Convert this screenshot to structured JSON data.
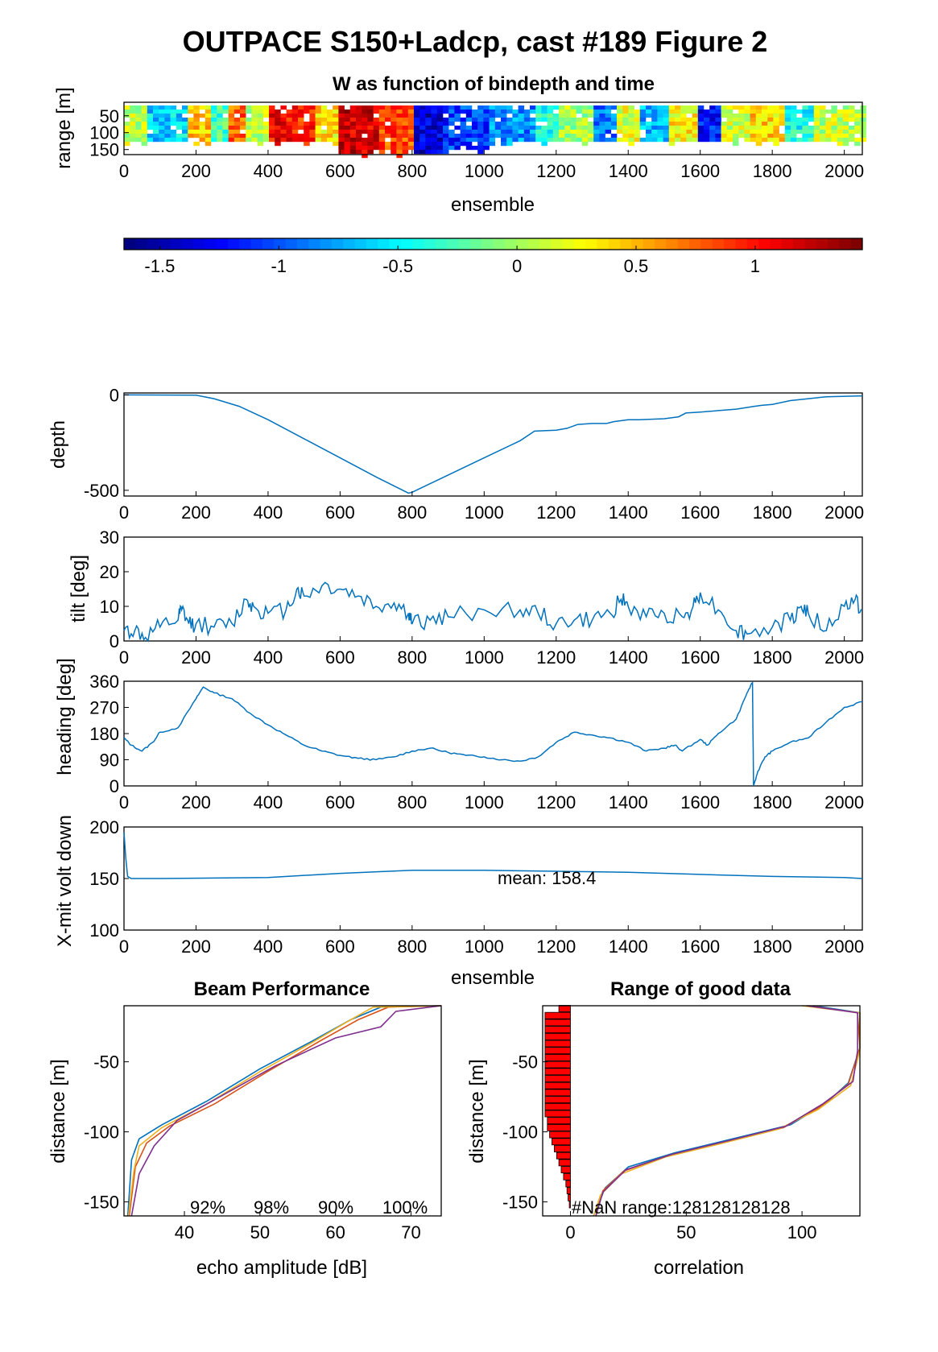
{
  "figure": {
    "title": "OUTPACE S150+Ladcp, cast #189 Figure 2"
  },
  "chart_data": [
    {
      "id": "w_image",
      "type": "heatmap",
      "title": "W as function of bindepth and time",
      "xlabel": "ensemble",
      "ylabel": "range [m]",
      "xlim": [
        0,
        2050
      ],
      "ylim": [
        165,
        10
      ],
      "xticks": [
        "0",
        "200",
        "400",
        "600",
        "800",
        "1000",
        "1200",
        "1400",
        "1600",
        "1800",
        "2000"
      ],
      "yticks": [
        "50",
        "100",
        "150"
      ],
      "w_segments": [
        {
          "x": [
            0,
            60
          ],
          "w": 0.1
        },
        {
          "x": [
            60,
            170
          ],
          "w": -0.6
        },
        {
          "x": [
            170,
            230
          ],
          "w": 0.45
        },
        {
          "x": [
            230,
            280
          ],
          "w": -0.3
        },
        {
          "x": [
            280,
            330
          ],
          "w": 0.8
        },
        {
          "x": [
            330,
            390
          ],
          "w": 0.05
        },
        {
          "x": [
            390,
            460
          ],
          "w": 1.05
        },
        {
          "x": [
            460,
            530
          ],
          "w": 0.95
        },
        {
          "x": [
            530,
            580
          ],
          "w": 0.35
        },
        {
          "x": [
            580,
            700
          ],
          "w": 1.2
        },
        {
          "x": [
            700,
            790
          ],
          "w": 0.85
        },
        {
          "x": [
            790,
            880
          ],
          "w": -1.4
        },
        {
          "x": [
            880,
            1000
          ],
          "w": -1.1
        },
        {
          "x": [
            1000,
            1130
          ],
          "w": -0.85
        },
        {
          "x": [
            1130,
            1200
          ],
          "w": -0.4
        },
        {
          "x": [
            1200,
            1290
          ],
          "w": 0.0
        },
        {
          "x": [
            1290,
            1360
          ],
          "w": -0.9
        },
        {
          "x": [
            1360,
            1430
          ],
          "w": 0.2
        },
        {
          "x": [
            1430,
            1500
          ],
          "w": -0.7
        },
        {
          "x": [
            1500,
            1580
          ],
          "w": 0.3
        },
        {
          "x": [
            1580,
            1650
          ],
          "w": -1.2
        },
        {
          "x": [
            1650,
            1730
          ],
          "w": 0.15
        },
        {
          "x": [
            1730,
            1820
          ],
          "w": 0.4
        },
        {
          "x": [
            1820,
            1900
          ],
          "w": -0.45
        },
        {
          "x": [
            1900,
            2050
          ],
          "w": 0.1
        }
      ]
    },
    {
      "id": "colorbar",
      "type": "heatmap",
      "clim": [
        -1.65,
        1.45
      ],
      "ticks": [
        "-1.5",
        "-1",
        "-0.5",
        "0",
        "0.5",
        "1"
      ],
      "tick_values": [
        -1.5,
        -1,
        -0.5,
        0,
        0.5,
        1
      ]
    },
    {
      "id": "depth",
      "type": "line",
      "ylabel": "depth",
      "xlim": [
        0,
        2050
      ],
      "ylim": [
        -530,
        10
      ],
      "xticks": [
        "0",
        "200",
        "400",
        "600",
        "800",
        "1000",
        "1200",
        "1400",
        "1600",
        "1800",
        "2000"
      ],
      "yticks": [
        "0",
        "-500"
      ],
      "ytick_values": [
        0,
        -500
      ],
      "x": [
        0,
        200,
        250,
        320,
        400,
        500,
        600,
        700,
        790,
        800,
        900,
        1000,
        1100,
        1140,
        1200,
        1230,
        1260,
        1300,
        1340,
        1360,
        1400,
        1430,
        1500,
        1540,
        1560,
        1600,
        1700,
        1750,
        1770,
        1800,
        1850,
        1900,
        1950,
        2050
      ],
      "y": [
        0,
        -2,
        -20,
        -60,
        -130,
        -230,
        -330,
        -430,
        -515,
        -510,
        -420,
        -330,
        -240,
        -190,
        -185,
        -175,
        -155,
        -150,
        -150,
        -140,
        -130,
        -130,
        -125,
        -115,
        -95,
        -90,
        -75,
        -60,
        -55,
        -50,
        -30,
        -20,
        -10,
        -5
      ]
    },
    {
      "id": "tilt",
      "type": "line",
      "ylabel": "tilt [deg]",
      "xlim": [
        0,
        2050
      ],
      "ylim": [
        0,
        30
      ],
      "xticks": [
        "0",
        "200",
        "400",
        "600",
        "800",
        "1000",
        "1200",
        "1400",
        "1600",
        "1800",
        "2000"
      ],
      "yticks": [
        "0",
        "10",
        "20",
        "30"
      ],
      "ytick_values": [
        0,
        10,
        20,
        30
      ],
      "x": [
        0,
        30,
        60,
        100,
        150,
        160,
        180,
        200,
        250,
        300,
        340,
        360,
        400,
        450,
        480,
        500,
        550,
        600,
        650,
        700,
        750,
        790,
        800,
        850,
        900,
        1000,
        1100,
        1150,
        1200,
        1250,
        1300,
        1350,
        1380,
        1400,
        1450,
        1500,
        1550,
        1580,
        1600,
        1650,
        1700,
        1730,
        1800,
        1850,
        1880,
        1900,
        1950,
        2000,
        2030,
        2050
      ],
      "y": [
        3,
        3,
        1,
        4,
        6,
        9,
        5,
        5,
        4,
        5,
        12,
        10,
        8,
        9,
        15,
        13,
        16,
        15,
        13,
        10,
        11,
        8,
        5,
        6,
        7,
        9,
        9,
        8,
        5,
        6,
        6,
        8,
        12,
        10,
        7,
        8,
        7,
        10,
        14,
        9,
        3,
        2,
        4,
        6,
        10,
        8,
        3,
        10,
        12,
        9
      ]
    },
    {
      "id": "heading",
      "type": "line",
      "ylabel": "heading [deg]",
      "xlim": [
        0,
        2050
      ],
      "ylim": [
        0,
        360
      ],
      "xticks": [
        "0",
        "200",
        "400",
        "600",
        "800",
        "1000",
        "1200",
        "1400",
        "1600",
        "1800",
        "2000"
      ],
      "yticks": [
        "0",
        "90",
        "180",
        "270",
        "360"
      ],
      "ytick_values": [
        0,
        90,
        180,
        270,
        360
      ],
      "x": [
        0,
        20,
        50,
        80,
        100,
        150,
        200,
        220,
        250,
        300,
        350,
        400,
        450,
        500,
        550,
        600,
        650,
        700,
        750,
        800,
        850,
        900,
        950,
        1000,
        1050,
        1100,
        1150,
        1200,
        1250,
        1300,
        1350,
        1400,
        1450,
        1500,
        1530,
        1550,
        1600,
        1620,
        1650,
        1700,
        1730,
        1745,
        1748,
        1760,
        1780,
        1800,
        1850,
        1900,
        1950,
        2000,
        2050
      ],
      "y": [
        165,
        140,
        120,
        150,
        185,
        200,
        300,
        340,
        320,
        300,
        250,
        210,
        175,
        140,
        120,
        105,
        95,
        90,
        100,
        120,
        130,
        115,
        105,
        100,
        90,
        85,
        100,
        150,
        185,
        175,
        165,
        150,
        120,
        130,
        140,
        120,
        160,
        140,
        180,
        230,
        320,
        355,
        0,
        50,
        100,
        120,
        150,
        165,
        220,
        270,
        290
      ]
    },
    {
      "id": "xmit_volt",
      "type": "line",
      "xlabel": "ensemble",
      "ylabel": "X-mit volt down",
      "xlim": [
        0,
        2050
      ],
      "ylim": [
        100,
        200
      ],
      "xticks": [
        "0",
        "200",
        "400",
        "600",
        "800",
        "1000",
        "1200",
        "1400",
        "1600",
        "1800",
        "2000"
      ],
      "yticks": [
        "100",
        "150",
        "200"
      ],
      "ytick_values": [
        100,
        150,
        200
      ],
      "annotation": "mean: 158.4",
      "x": [
        0,
        5,
        10,
        20,
        100,
        400,
        600,
        800,
        1000,
        1200,
        1400,
        1600,
        1800,
        2000,
        2050
      ],
      "y": [
        195,
        170,
        152,
        150,
        150,
        151,
        155,
        158,
        158,
        157,
        156,
        154,
        152,
        151,
        150
      ]
    },
    {
      "id": "beam_performance",
      "type": "line",
      "title": "Beam Performance",
      "xlabel": "echo amplitude [dB]",
      "ylabel": "distance [m]",
      "xlim": [
        32,
        74
      ],
      "ylim": [
        -160,
        -10
      ],
      "xticks": [
        "40",
        "50",
        "60",
        "70"
      ],
      "xtick_values": [
        40,
        50,
        60,
        70
      ],
      "yticks": [
        "-50",
        "-100",
        "-150"
      ],
      "ytick_values": [
        -50,
        -100,
        -150
      ],
      "percentages": [
        "92%",
        "98%",
        "90%",
        "100%"
      ],
      "series": [
        {
          "color": "#0072BD",
          "values": [
            [
              74,
              -10
            ],
            [
              66,
              -11
            ],
            [
              62,
              -20
            ],
            [
              57,
              -35
            ],
            [
              50,
              -55
            ],
            [
              43,
              -78
            ],
            [
              37,
              -95
            ],
            [
              34,
              -105
            ],
            [
              33,
              -120
            ],
            [
              32.5,
              -160
            ]
          ]
        },
        {
          "color": "#D95319",
          "values": [
            [
              74,
              -10
            ],
            [
              67,
              -11
            ],
            [
              63,
              -20
            ],
            [
              58,
              -35
            ],
            [
              51,
              -57
            ],
            [
              44,
              -80
            ],
            [
              38,
              -96
            ],
            [
              35,
              -108
            ],
            [
              33.5,
              -125
            ],
            [
              32.7,
              -160
            ]
          ]
        },
        {
          "color": "#EDB120",
          "values": [
            [
              74,
              -10
            ],
            [
              65,
              -11
            ],
            [
              62,
              -20
            ],
            [
              57,
              -36
            ],
            [
              50,
              -57
            ],
            [
              43,
              -80
            ],
            [
              37,
              -97
            ],
            [
              34,
              -110
            ],
            [
              33.3,
              -128
            ],
            [
              32.6,
              -160
            ]
          ]
        },
        {
          "color": "#7E2F8E",
          "values": [
            [
              74,
              -10
            ],
            [
              68,
              -14
            ],
            [
              66,
              -25
            ],
            [
              60,
              -33
            ],
            [
              52,
              -53
            ],
            [
              45,
              -74
            ],
            [
              39,
              -92
            ],
            [
              36,
              -110
            ],
            [
              34,
              -130
            ],
            [
              33,
              -160
            ]
          ]
        }
      ]
    },
    {
      "id": "range_good_data",
      "type": "line",
      "title": "Range of good data",
      "xlabel": "correlation",
      "ylabel": "distance [m]",
      "xlim": [
        -12,
        125
      ],
      "ylim": [
        -160,
        -10
      ],
      "xticks": [
        "0",
        "50",
        "100"
      ],
      "xtick_values": [
        0,
        50,
        100
      ],
      "yticks": [
        "-50",
        "-100",
        "-150"
      ],
      "ytick_values": [
        -50,
        -100,
        -150
      ],
      "annotation": "#NaN range:128128128128",
      "nan_bars": [
        {
          "y": -12,
          "w": -5
        },
        {
          "y": -17,
          "w": -11
        },
        {
          "y": -22,
          "w": -11
        },
        {
          "y": -27,
          "w": -11
        },
        {
          "y": -32,
          "w": -11
        },
        {
          "y": -37,
          "w": -11
        },
        {
          "y": -42,
          "w": -11
        },
        {
          "y": -47,
          "w": -11
        },
        {
          "y": -52,
          "w": -11
        },
        {
          "y": -57,
          "w": -11
        },
        {
          "y": -62,
          "w": -11
        },
        {
          "y": -67,
          "w": -11
        },
        {
          "y": -72,
          "w": -11
        },
        {
          "y": -77,
          "w": -11
        },
        {
          "y": -82,
          "w": -11
        },
        {
          "y": -87,
          "w": -11
        },
        {
          "y": -92,
          "w": -10
        },
        {
          "y": -97,
          "w": -10
        },
        {
          "y": -102,
          "w": -9
        },
        {
          "y": -107,
          "w": -8
        },
        {
          "y": -112,
          "w": -7
        },
        {
          "y": -117,
          "w": -6
        },
        {
          "y": -122,
          "w": -5
        },
        {
          "y": -127,
          "w": -4
        },
        {
          "y": -132,
          "w": -3
        },
        {
          "y": -137,
          "w": -2
        },
        {
          "y": -142,
          "w": -1.5
        },
        {
          "y": -147,
          "w": -1
        },
        {
          "y": -152,
          "w": -0.5
        }
      ],
      "series": [
        {
          "color": "#0072BD",
          "values": [
            [
              105,
              -10
            ],
            [
              125,
              -15
            ],
            [
              125,
              -40
            ],
            [
              120,
              -65
            ],
            [
              110,
              -80
            ],
            [
              95,
              -95
            ],
            [
              70,
              -105
            ],
            [
              45,
              -115
            ],
            [
              25,
              -125
            ],
            [
              15,
              -140
            ],
            [
              10,
              -160
            ]
          ]
        },
        {
          "color": "#D95319",
          "values": [
            [
              103,
              -10
            ],
            [
              124,
              -15
            ],
            [
              125,
              -40
            ],
            [
              120,
              -66
            ],
            [
              108,
              -82
            ],
            [
              92,
              -97
            ],
            [
              67,
              -107
            ],
            [
              42,
              -117
            ],
            [
              23,
              -128
            ],
            [
              14,
              -142
            ],
            [
              11,
              -160
            ]
          ]
        },
        {
          "color": "#EDB120",
          "values": [
            [
              100,
              -10
            ],
            [
              125,
              -15
            ],
            [
              125,
              -42
            ],
            [
              121,
              -67
            ],
            [
              107,
              -84
            ],
            [
              90,
              -98
            ],
            [
              66,
              -108
            ],
            [
              41,
              -118
            ],
            [
              22,
              -130
            ],
            [
              13,
              -145
            ],
            [
              10,
              -160
            ]
          ]
        },
        {
          "color": "#7E2F8E",
          "values": [
            [
              102,
              -10
            ],
            [
              124,
              -15
            ],
            [
              124,
              -42
            ],
            [
              122,
              -64
            ],
            [
              109,
              -80
            ],
            [
              93,
              -96
            ],
            [
              69,
              -106
            ],
            [
              44,
              -116
            ],
            [
              24,
              -127
            ],
            [
              14,
              -143
            ],
            [
              11,
              -160
            ]
          ]
        }
      ]
    }
  ]
}
